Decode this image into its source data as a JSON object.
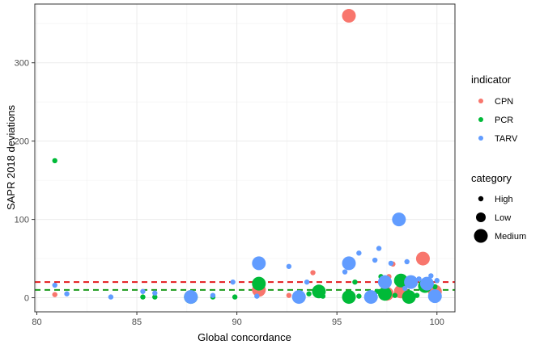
{
  "chart_data": {
    "type": "scatter",
    "xlabel": "Global concordance",
    "ylabel": "SAPR 2018 deviations",
    "xlim": [
      79.9,
      100.9
    ],
    "ylim": [
      -18,
      375
    ],
    "x_ticks": [
      "80",
      "85",
      "90",
      "95",
      "100"
    ],
    "y_ticks": [
      "0",
      "100",
      "200",
      "300"
    ],
    "grid": true,
    "legend_placement": "right",
    "reference_lines": [
      {
        "y": 20,
        "color": "#e41a1c",
        "style": "dashed"
      },
      {
        "y": 10,
        "color": "#1a9a1a",
        "style": "dashed"
      }
    ],
    "legends": {
      "indicator": {
        "title": "indicator",
        "items": [
          {
            "label": "CPN",
            "color": "#F8766D"
          },
          {
            "label": "PCR",
            "color": "#00BA38"
          },
          {
            "label": "TARV",
            "color": "#619CFF"
          }
        ]
      },
      "category": {
        "title": "category",
        "items": [
          {
            "label": "High",
            "size": "small"
          },
          {
            "label": "Low",
            "size": "medium"
          },
          {
            "label": "Medium",
            "size": "large"
          }
        ]
      }
    },
    "series": [
      {
        "name": "CPN",
        "color": "#F8766D",
        "points": [
          {
            "x": 80.9,
            "y": 4,
            "category": "High"
          },
          {
            "x": 91.1,
            "y": 10,
            "category": "Medium"
          },
          {
            "x": 92.6,
            "y": 3,
            "category": "High"
          },
          {
            "x": 93.8,
            "y": 32,
            "category": "High"
          },
          {
            "x": 95.6,
            "y": 360,
            "category": "Medium"
          },
          {
            "x": 97.5,
            "y": 5,
            "category": "Medium"
          },
          {
            "x": 97.6,
            "y": 27,
            "category": "High"
          },
          {
            "x": 97.8,
            "y": 43,
            "category": "High"
          },
          {
            "x": 98.1,
            "y": 18,
            "category": "High"
          },
          {
            "x": 98.2,
            "y": 8,
            "category": "Medium"
          },
          {
            "x": 98.8,
            "y": 24,
            "category": "High"
          },
          {
            "x": 99.3,
            "y": 50,
            "category": "Medium"
          },
          {
            "x": 99.5,
            "y": 10,
            "category": "High"
          },
          {
            "x": 99.9,
            "y": 8,
            "category": "Medium"
          }
        ]
      },
      {
        "name": "PCR",
        "color": "#00BA38",
        "points": [
          {
            "x": 80.9,
            "y": 175,
            "category": "High"
          },
          {
            "x": 85.3,
            "y": 1,
            "category": "High"
          },
          {
            "x": 85.9,
            "y": 1,
            "category": "High"
          },
          {
            "x": 87.7,
            "y": 1,
            "category": "Medium"
          },
          {
            "x": 88.8,
            "y": 1,
            "category": "High"
          },
          {
            "x": 89.9,
            "y": 1,
            "category": "High"
          },
          {
            "x": 91.1,
            "y": 18,
            "category": "Medium"
          },
          {
            "x": 93.6,
            "y": 5,
            "category": "High"
          },
          {
            "x": 94.1,
            "y": 8,
            "category": "Medium"
          },
          {
            "x": 94.3,
            "y": 2,
            "category": "High"
          },
          {
            "x": 95.6,
            "y": 1,
            "category": "Medium"
          },
          {
            "x": 95.9,
            "y": 20,
            "category": "High"
          },
          {
            "x": 96.1,
            "y": 2,
            "category": "High"
          },
          {
            "x": 96.6,
            "y": 5,
            "category": "High"
          },
          {
            "x": 97.0,
            "y": 8,
            "category": "High"
          },
          {
            "x": 97.2,
            "y": 27,
            "category": "High"
          },
          {
            "x": 97.4,
            "y": 5,
            "category": "Medium"
          },
          {
            "x": 97.9,
            "y": 3,
            "category": "High"
          },
          {
            "x": 98.2,
            "y": 22,
            "category": "Medium"
          },
          {
            "x": 98.6,
            "y": 1,
            "category": "Medium"
          },
          {
            "x": 99.0,
            "y": 3,
            "category": "High"
          },
          {
            "x": 99.4,
            "y": 15,
            "category": "Medium"
          },
          {
            "x": 99.9,
            "y": 14,
            "category": "High"
          }
        ]
      },
      {
        "name": "TARV",
        "color": "#619CFF",
        "points": [
          {
            "x": 80.9,
            "y": 16,
            "category": "High"
          },
          {
            "x": 81.5,
            "y": 5,
            "category": "High"
          },
          {
            "x": 83.7,
            "y": 1,
            "category": "High"
          },
          {
            "x": 85.3,
            "y": 8,
            "category": "High"
          },
          {
            "x": 85.9,
            "y": 6,
            "category": "High"
          },
          {
            "x": 87.7,
            "y": 1,
            "category": "Medium"
          },
          {
            "x": 88.8,
            "y": 3,
            "category": "High"
          },
          {
            "x": 89.8,
            "y": 20,
            "category": "High"
          },
          {
            "x": 91.1,
            "y": 44,
            "category": "Medium"
          },
          {
            "x": 91.0,
            "y": 2,
            "category": "High"
          },
          {
            "x": 92.6,
            "y": 40,
            "category": "High"
          },
          {
            "x": 93.1,
            "y": 1,
            "category": "Medium"
          },
          {
            "x": 93.5,
            "y": 20,
            "category": "High"
          },
          {
            "x": 95.4,
            "y": 33,
            "category": "High"
          },
          {
            "x": 95.6,
            "y": 44,
            "category": "Medium"
          },
          {
            "x": 96.1,
            "y": 57,
            "category": "High"
          },
          {
            "x": 96.7,
            "y": 1,
            "category": "Medium"
          },
          {
            "x": 96.9,
            "y": 48,
            "category": "High"
          },
          {
            "x": 97.1,
            "y": 63,
            "category": "High"
          },
          {
            "x": 97.4,
            "y": 20,
            "category": "Medium"
          },
          {
            "x": 97.7,
            "y": 44,
            "category": "High"
          },
          {
            "x": 98.1,
            "y": 100,
            "category": "Medium"
          },
          {
            "x": 98.4,
            "y": 12,
            "category": "High"
          },
          {
            "x": 98.5,
            "y": 46,
            "category": "High"
          },
          {
            "x": 98.7,
            "y": 20,
            "category": "Medium"
          },
          {
            "x": 99.1,
            "y": 24,
            "category": "High"
          },
          {
            "x": 99.5,
            "y": 18,
            "category": "Medium"
          },
          {
            "x": 99.7,
            "y": 28,
            "category": "High"
          },
          {
            "x": 99.9,
            "y": 2,
            "category": "Medium"
          },
          {
            "x": 100.0,
            "y": 22,
            "category": "High"
          }
        ]
      }
    ]
  }
}
